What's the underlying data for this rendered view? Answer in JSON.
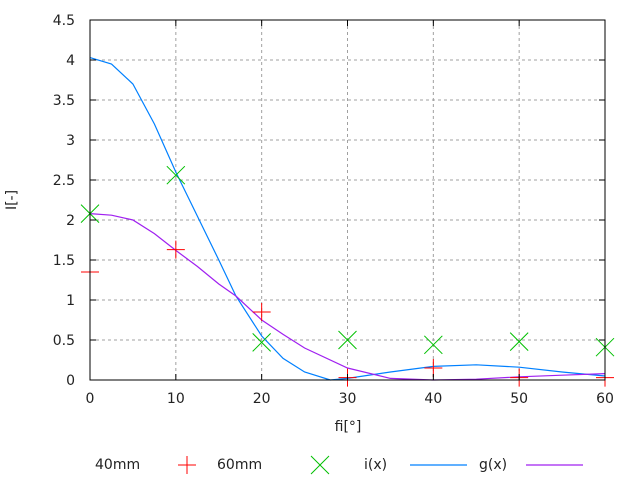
{
  "chart_data": {
    "type": "scatter",
    "xlabel": "fi[°]",
    "ylabel": "I[-]",
    "xlim": [
      0,
      60
    ],
    "ylim": [
      0,
      4.5
    ],
    "xticks": [
      0,
      10,
      20,
      30,
      40,
      50,
      60
    ],
    "yticks": [
      "0",
      "0.5",
      "1",
      "1.5",
      "2",
      "2.5",
      "3",
      "3.5",
      "4",
      "4.5"
    ],
    "grid": true,
    "legend_position": "bottom",
    "series": [
      {
        "name": "40mm",
        "kind": "points",
        "marker": "plus",
        "color": "#ff0000",
        "x": [
          0,
          10,
          20,
          30,
          40,
          50,
          60
        ],
        "y": [
          1.35,
          1.63,
          0.85,
          0.03,
          0.15,
          0.03,
          0.03
        ]
      },
      {
        "name": "60mm",
        "kind": "points",
        "marker": "cross",
        "color": "#00c000",
        "x": [
          0,
          10,
          20,
          30,
          40,
          50,
          60
        ],
        "y": [
          2.08,
          2.56,
          0.47,
          0.5,
          0.44,
          0.48,
          0.41
        ]
      },
      {
        "name": "i(x)",
        "kind": "line",
        "color": "#0080ff",
        "x": [
          0,
          2.5,
          5,
          7.5,
          10,
          12.5,
          15,
          17,
          20,
          22.5,
          25,
          28,
          30,
          35,
          40,
          45,
          50,
          55,
          60
        ],
        "y": [
          4.03,
          3.95,
          3.7,
          3.2,
          2.6,
          2.05,
          1.5,
          1.05,
          0.55,
          0.27,
          0.1,
          0.0,
          0.02,
          0.1,
          0.17,
          0.19,
          0.16,
          0.1,
          0.05
        ]
      },
      {
        "name": "g(x)",
        "kind": "line",
        "color": "#a020f0",
        "x": [
          0,
          2.5,
          5,
          7.5,
          10,
          12.5,
          15,
          17,
          20,
          22.5,
          25,
          30,
          35,
          40,
          45,
          50,
          55,
          60
        ],
        "y": [
          2.08,
          2.06,
          2.0,
          1.83,
          1.62,
          1.42,
          1.2,
          1.05,
          0.75,
          0.57,
          0.4,
          0.15,
          0.02,
          0.0,
          0.01,
          0.04,
          0.06,
          0.08
        ]
      }
    ]
  }
}
